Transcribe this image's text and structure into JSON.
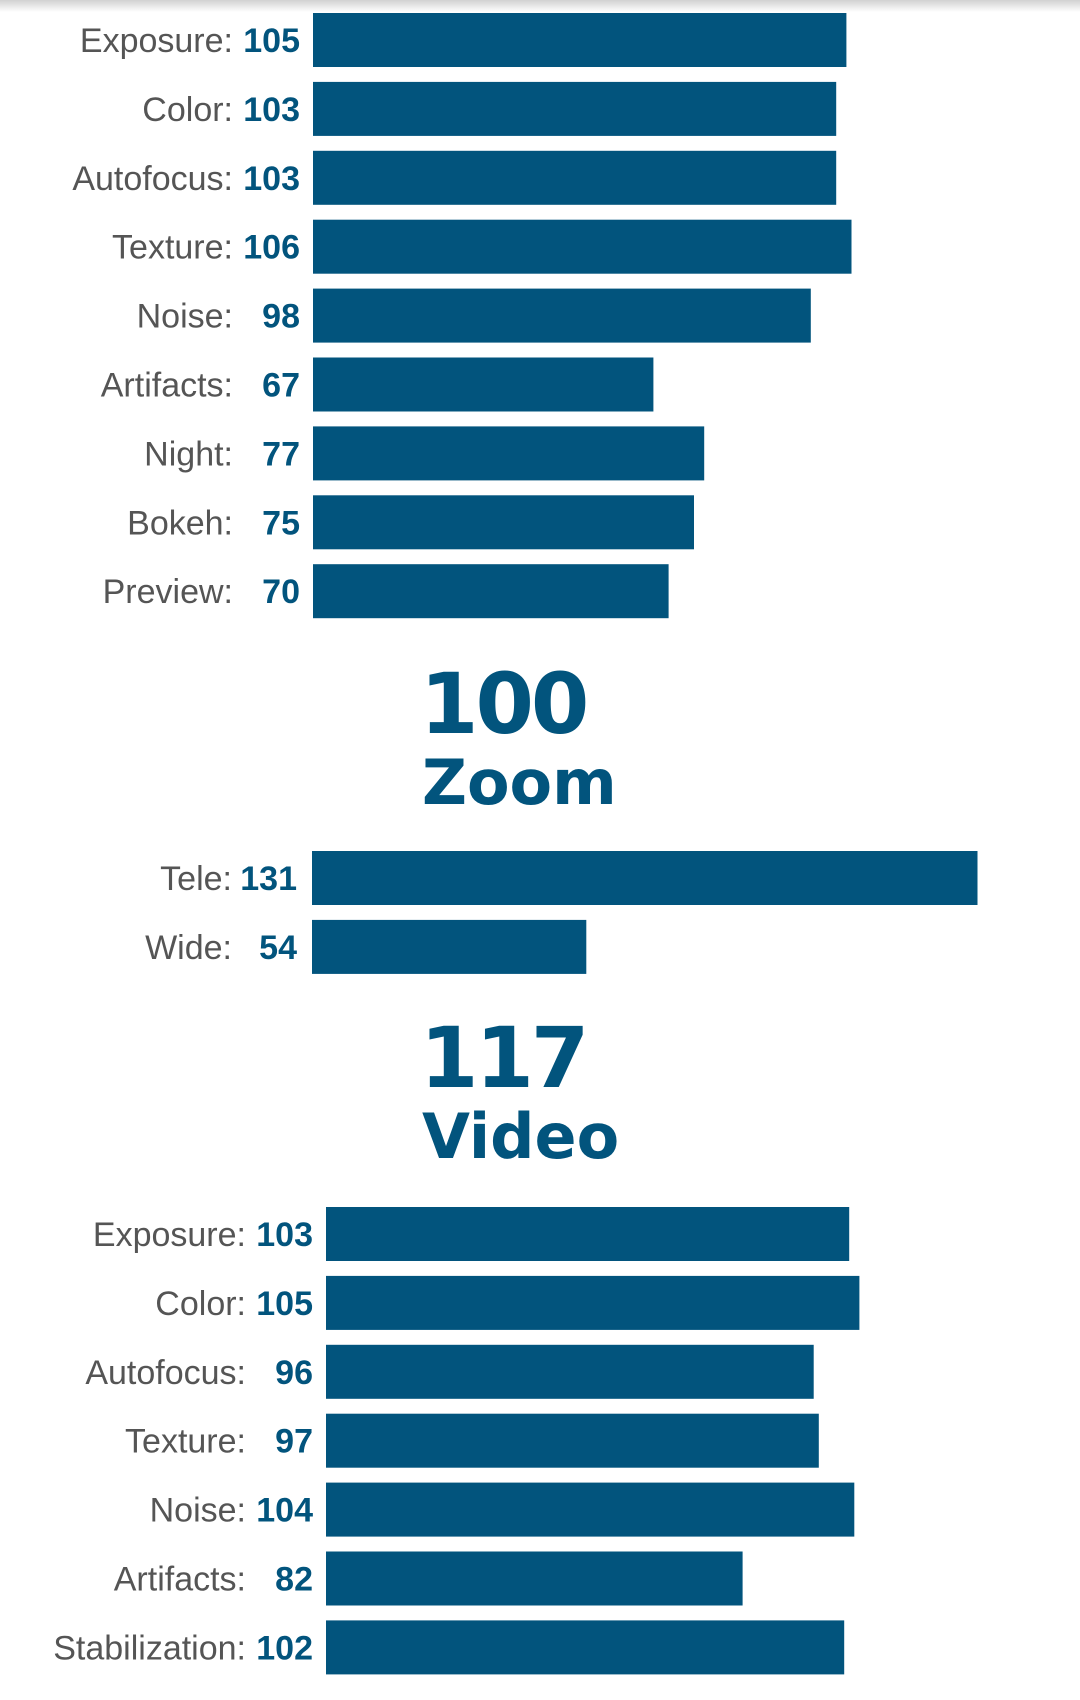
{
  "colors": {
    "bar": "#02547d",
    "label": "#555555",
    "value": "#02547d"
  },
  "chart_data": [
    {
      "type": "bar",
      "orientation": "horizontal",
      "title": "",
      "categories": [
        "Exposure",
        "Color",
        "Autofocus",
        "Texture",
        "Noise",
        "Artifacts",
        "Night",
        "Bokeh",
        "Preview"
      ],
      "values": [
        105,
        103,
        103,
        106,
        98,
        67,
        77,
        75,
        70
      ]
    },
    {
      "type": "bar",
      "orientation": "horizontal",
      "title": "Zoom",
      "score": "100",
      "categories": [
        "Tele",
        "Wide"
      ],
      "values": [
        131,
        54
      ]
    },
    {
      "type": "bar",
      "orientation": "horizontal",
      "title": "Video",
      "score": "117",
      "categories": [
        "Exposure",
        "Color",
        "Autofocus",
        "Texture",
        "Noise",
        "Artifacts",
        "Stabilization"
      ],
      "values": [
        103,
        105,
        96,
        97,
        104,
        82,
        102
      ]
    }
  ]
}
